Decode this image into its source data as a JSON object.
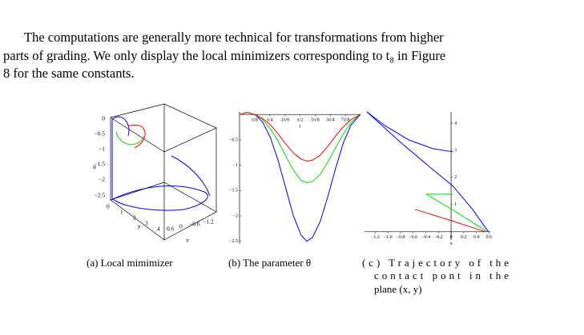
{
  "paragraph": [
    "The computations are generally more technical for transformations from higher",
    "parts of grading. We only display the local minimizers corresponding to t₈ in Figure",
    "8 for the same constants."
  ],
  "figure": {
    "panel_a": {
      "zlabel": "θ",
      "zticks": [
        "0",
        "−0.5",
        "−1",
        "−1.5",
        "−2",
        "−2.5"
      ],
      "yticks": [
        "0",
        "1",
        "2",
        "3",
        "4"
      ],
      "ylabel": "y",
      "xticks": [
        "0.6",
        "0",
        "−0.6",
        "−1.2"
      ],
      "xlabel": "x",
      "caption": "(a) Local mimimizer"
    },
    "caption_b": "(b) The parameter θ",
    "caption_c": [
      "(c) Trajectory of the",
      "contact pont in the",
      "plane (x, y)"
    ]
  },
  "chart_data": [
    {
      "type": "line",
      "xlabel": "t",
      "x": [
        0,
        0.2,
        0.4,
        0.6,
        0.8,
        1.0,
        1.2,
        1.4,
        1.6,
        1.75,
        1.9,
        2.1,
        2.3,
        2.5,
        2.7,
        2.9,
        3.1416
      ],
      "series": [
        {
          "color": "#0000ff",
          "values": [
            0,
            0.04,
            0.0,
            -0.15,
            -0.45,
            -0.9,
            -1.45,
            -2.0,
            -2.38,
            -2.5,
            -2.42,
            -2.1,
            -1.6,
            -1.05,
            -0.55,
            -0.2,
            0
          ]
        },
        {
          "color": "#00e000",
          "values": [
            0,
            0.04,
            0.0,
            -0.1,
            -0.28,
            -0.52,
            -0.82,
            -1.1,
            -1.3,
            -1.35,
            -1.32,
            -1.18,
            -0.93,
            -0.65,
            -0.38,
            -0.15,
            0
          ]
        },
        {
          "color": "#ff0000",
          "values": [
            0,
            0.04,
            0.0,
            -0.08,
            -0.2,
            -0.38,
            -0.58,
            -0.76,
            -0.88,
            -0.92,
            -0.9,
            -0.8,
            -0.62,
            -0.42,
            -0.24,
            -0.1,
            0
          ]
        }
      ],
      "xlim": [
        0,
        3.1416
      ],
      "ylim": [
        -2.55,
        0.05
      ],
      "xticks": [
        {
          "value": 0.3927,
          "label": "π/8"
        },
        {
          "value": 0.7854,
          "label": "π/4"
        },
        {
          "value": 1.1781,
          "label": "3π/8"
        },
        {
          "value": 1.5708,
          "label": "π/2"
        },
        {
          "value": 1.9635,
          "label": "5π/8"
        },
        {
          "value": 2.3562,
          "label": "3π/4"
        },
        {
          "value": 2.7489,
          "label": "7π/8"
        }
      ],
      "yticks": [
        {
          "value": -0.5,
          "label": "−0.5"
        },
        {
          "value": -1,
          "label": "−1"
        },
        {
          "value": -1.5,
          "label": "−1.5"
        },
        {
          "value": -2,
          "label": "−2"
        },
        {
          "value": -2.5,
          "label": "−2.5"
        }
      ]
    },
    {
      "type": "trajectory",
      "xlabel": "x",
      "series": [
        {
          "color": "#0000ff",
          "x": [
            -1.33,
            -1.05,
            -0.67,
            -0.29,
            0.03
          ],
          "values": [
            4.41,
            3.91,
            3.38,
            3.06,
            2.94
          ]
        },
        {
          "color": "#0000ff",
          "x": [
            -1.33,
            -0.8,
            -0.29,
            0.03,
            0.34,
            0.59
          ],
          "values": [
            4.41,
            3.29,
            2.29,
            1.68,
            0.82,
            0
          ]
        },
        {
          "color": "#00e000",
          "x": [
            0.03,
            -0.39,
            0.09,
            0.57
          ],
          "values": [
            1.38,
            1.38,
            0.71,
            0
          ]
        },
        {
          "color": "#ff0000",
          "x": [
            -0.57,
            -0.04,
            0.54
          ],
          "values": [
            0.82,
            0.44,
            0
          ]
        }
      ],
      "xlim": [
        -1.37,
        0.62
      ],
      "ylim": [
        -0.3,
        4.41
      ],
      "xticks": [
        {
          "value": -1.2,
          "label": "−1.2"
        },
        {
          "value": -1.0,
          "label": "−1.0"
        },
        {
          "value": -0.8,
          "label": "−0.8"
        },
        {
          "value": -0.6,
          "label": "−0.6"
        },
        {
          "value": -0.4,
          "label": "−0.4"
        },
        {
          "value": -0.2,
          "label": "−0.2"
        },
        0,
        0.2,
        0.4,
        0.6
      ],
      "yticks": [
        1,
        2,
        3,
        4
      ]
    }
  ]
}
